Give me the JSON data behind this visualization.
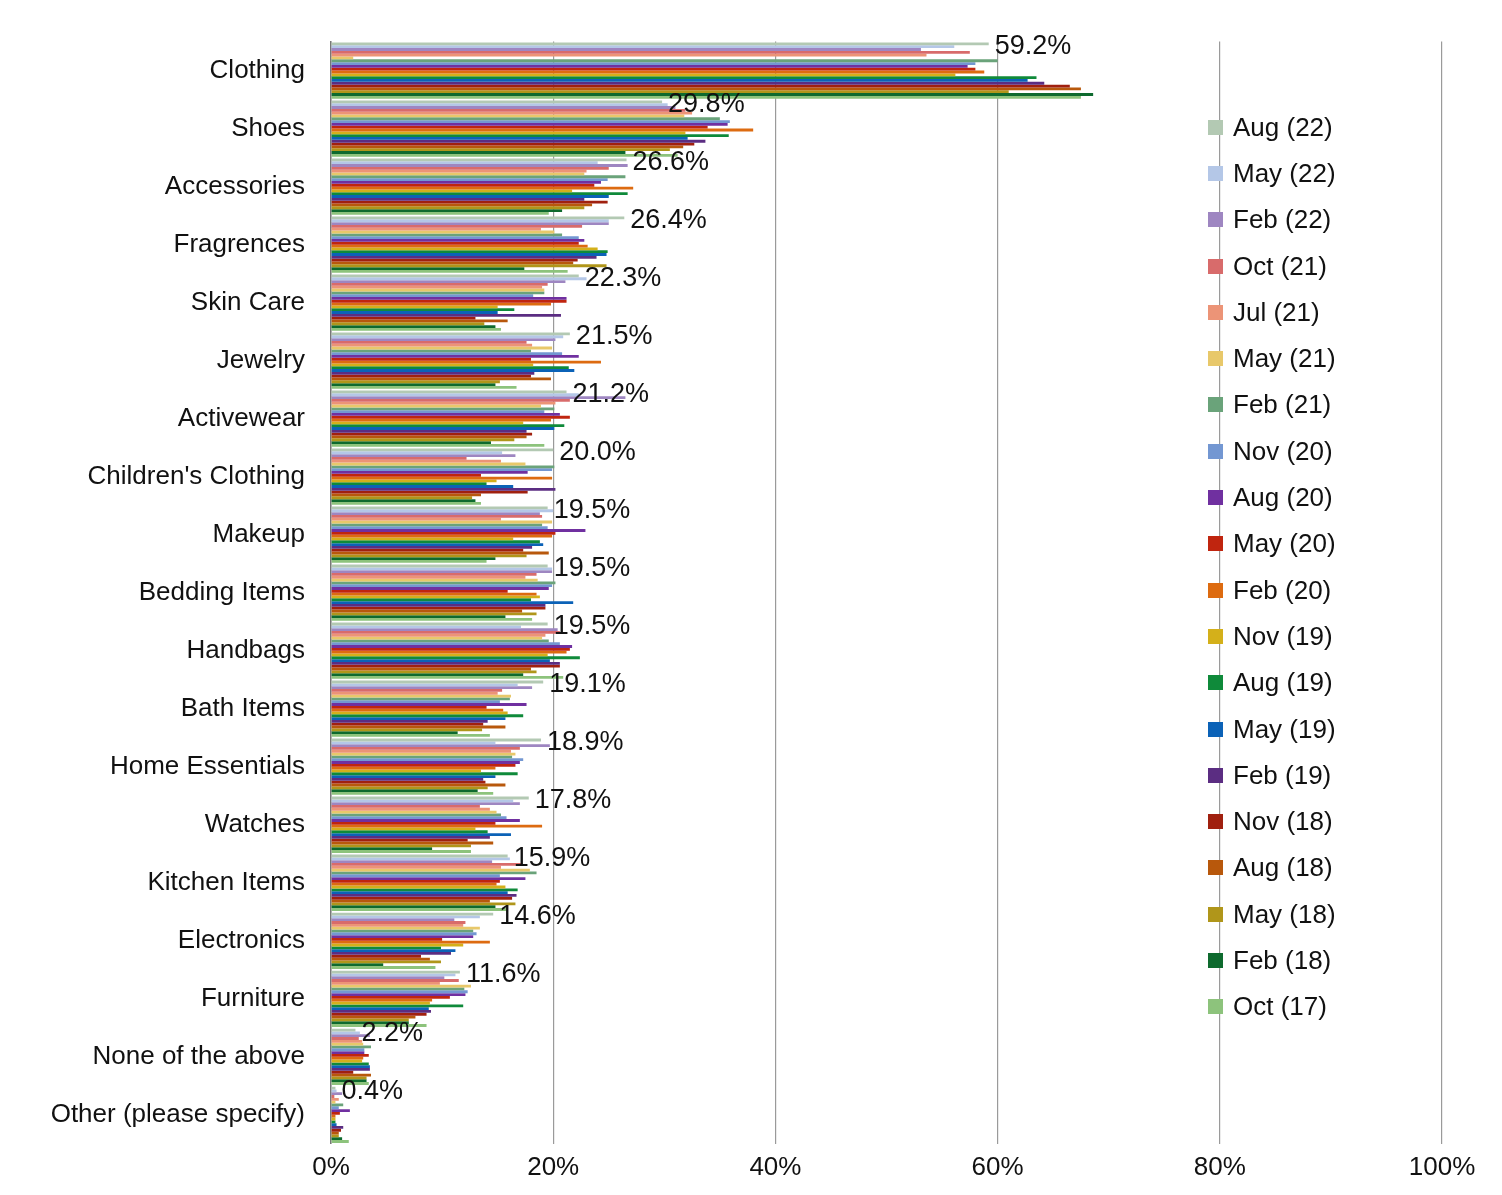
{
  "chart_data": {
    "type": "bar",
    "orientation": "horizontal",
    "categories": [
      "Clothing",
      "Shoes",
      "Accessories",
      "Fragrences",
      "Skin Care",
      "Jewelry",
      "Activewear",
      "Children's Clothing",
      "Makeup",
      "Bedding Items",
      "Handbags",
      "Bath Items",
      "Home Essentials",
      "Watches",
      "Kitchen Items",
      "Electronics",
      "Furniture",
      "None of the above",
      "Other (please specify)"
    ],
    "series": [
      {
        "name": "Aug (22)",
        "color": "#b3c9b3",
        "values": [
          59.2,
          29.8,
          26.6,
          26.4,
          22.3,
          21.5,
          21.2,
          20.0,
          19.5,
          19.5,
          19.5,
          19.1,
          18.9,
          17.8,
          15.9,
          14.6,
          11.6,
          2.2,
          0.4
        ],
        "value_labels": [
          "59.2%",
          "29.8%",
          "26.6%",
          "26.4%",
          "22.3%",
          "21.5%",
          "21.2%",
          "20.0%",
          "19.5%",
          "19.5%",
          "19.5%",
          "19.1%",
          "18.9%",
          "17.8%",
          "15.9%",
          "14.6%",
          "11.6%",
          "2.2%",
          "0.4%"
        ]
      },
      {
        "name": "May (22)",
        "color": "#b4c7e7",
        "values": [
          56.1,
          30.3,
          24.0,
          25.0,
          23.0,
          20.9,
          22.3,
          15.4,
          20.0,
          19.9,
          17.1,
          16.8,
          14.8,
          16.4,
          16.1,
          13.4,
          11.2,
          2.6,
          0.5
        ]
      },
      {
        "name": "Feb (22)",
        "color": "#9e86c1",
        "values": [
          53.1,
          31.0,
          26.7,
          25.0,
          21.1,
          20.2,
          26.5,
          16.6,
          18.8,
          19.9,
          20.4,
          18.1,
          19.7,
          17.0,
          14.5,
          11.1,
          10.2,
          3.5,
          1.0
        ]
      },
      {
        "name": "Oct (21)",
        "color": "#d86b6b",
        "values": [
          57.5,
          31.9,
          25.0,
          22.6,
          19.5,
          17.6,
          21.5,
          12.2,
          19.0,
          18.5,
          20.6,
          15.4,
          17.0,
          13.4,
          17.1,
          12.1,
          11.5,
          2.5,
          0.3
        ]
      },
      {
        "name": "Jul (21)",
        "color": "#ec9477",
        "values": [
          53.6,
          32.5,
          23.0,
          18.9,
          19.0,
          18.1,
          20.2,
          15.3,
          15.3,
          17.5,
          19.3,
          15.0,
          16.2,
          14.3,
          15.3,
          11.9,
          9.8,
          2.8,
          0.7
        ]
      },
      {
        "name": "May (21)",
        "color": "#e8c86a",
        "values": [
          2.0,
          31.8,
          22.8,
          20.1,
          19.2,
          19.9,
          18.9,
          17.5,
          19.9,
          18.6,
          19.0,
          16.2,
          16.6,
          14.9,
          17.9,
          13.4,
          12.6,
          2.9,
          0.4
        ]
      },
      {
        "name": "Feb (21)",
        "color": "#6aa37a",
        "values": [
          60.0,
          35.0,
          26.5,
          20.8,
          19.2,
          18.0,
          20.1,
          20.1,
          19.0,
          20.2,
          19.6,
          16.1,
          16.3,
          15.3,
          18.5,
          12.8,
          12.0,
          3.6,
          1.1
        ]
      },
      {
        "name": "Nov (20)",
        "color": "#7397d2",
        "values": [
          58.0,
          35.9,
          24.9,
          22.3,
          18.2,
          20.8,
          19.2,
          19.9,
          19.5,
          19.9,
          20.6,
          15.2,
          17.3,
          15.8,
          15.2,
          13.1,
          12.3,
          3.0,
          0.7
        ]
      },
      {
        "name": "Aug (20)",
        "color": "#7030a0",
        "values": [
          57.3,
          35.7,
          24.3,
          22.8,
          21.2,
          22.3,
          20.6,
          17.7,
          22.9,
          19.6,
          21.7,
          17.6,
          17.0,
          17.0,
          17.5,
          12.8,
          12.1,
          3.0,
          1.7
        ]
      },
      {
        "name": "May (20)",
        "color": "#c0250f",
        "values": [
          58.0,
          33.9,
          23.7,
          22.3,
          21.2,
          18.0,
          21.5,
          13.5,
          20.2,
          15.9,
          21.5,
          14.0,
          16.6,
          14.8,
          15.2,
          10.0,
          10.7,
          3.4,
          0.8
        ]
      },
      {
        "name": "Feb (20)",
        "color": "#dd6b10",
        "values": [
          58.8,
          38.0,
          27.2,
          23.1,
          19.8,
          24.3,
          19.8,
          19.9,
          19.9,
          18.5,
          21.2,
          15.5,
          14.8,
          19.0,
          14.9,
          14.3,
          9.1,
          2.9,
          0.4
        ]
      },
      {
        "name": "Nov (19)",
        "color": "#d4b01a",
        "values": [
          56.2,
          31.9,
          21.7,
          24.0,
          15.0,
          18.2,
          17.3,
          14.9,
          16.4,
          18.8,
          19.5,
          15.9,
          13.5,
          13.0,
          15.7,
          11.9,
          8.9,
          2.8,
          0.4
        ]
      },
      {
        "name": "Aug (19)",
        "color": "#0f8a3a",
        "values": [
          63.5,
          35.8,
          26.7,
          24.9,
          16.5,
          21.4,
          21.0,
          14.0,
          18.8,
          18.0,
          22.4,
          17.3,
          16.8,
          14.1,
          16.8,
          9.9,
          11.9,
          3.4,
          0.4
        ]
      },
      {
        "name": "May (19)",
        "color": "#0b62b7",
        "values": [
          62.7,
          32.1,
          25.0,
          24.8,
          15.0,
          21.9,
          20.1,
          16.4,
          19.1,
          21.8,
          19.7,
          15.7,
          14.8,
          16.2,
          15.9,
          11.2,
          8.8,
          3.5,
          0.5
        ]
      },
      {
        "name": "Feb (19)",
        "color": "#5b2d82",
        "values": [
          64.2,
          33.7,
          22.8,
          23.9,
          20.7,
          18.3,
          17.6,
          20.2,
          18.1,
          19.3,
          20.6,
          14.1,
          13.7,
          14.3,
          16.7,
          10.8,
          9.0,
          3.5,
          1.1
        ]
      },
      {
        "name": "Nov (18)",
        "color": "#a0200f",
        "values": [
          66.5,
          32.7,
          24.9,
          22.2,
          13.0,
          18.0,
          18.1,
          17.7,
          17.3,
          19.3,
          20.6,
          13.7,
          13.9,
          12.3,
          16.3,
          8.1,
          8.6,
          2.0,
          0.9
        ]
      },
      {
        "name": "Aug (18)",
        "color": "#b8580c",
        "values": [
          67.5,
          31.7,
          23.5,
          21.8,
          15.9,
          19.8,
          17.6,
          13.5,
          19.6,
          17.2,
          18.0,
          15.7,
          15.7,
          14.6,
          14.3,
          8.9,
          7.6,
          3.6,
          0.7
        ]
      },
      {
        "name": "May (18)",
        "color": "#b0961a",
        "values": [
          61.0,
          30.5,
          22.8,
          24.8,
          13.8,
          15.2,
          16.5,
          12.7,
          17.6,
          18.5,
          18.5,
          13.6,
          14.1,
          12.6,
          16.6,
          9.9,
          7.0,
          3.2,
          0.7
        ]
      },
      {
        "name": "Feb (18)",
        "color": "#0e6a2e",
        "values": [
          68.6,
          26.5,
          20.8,
          17.4,
          14.8,
          14.8,
          14.4,
          13.0,
          14.8,
          15.7,
          17.3,
          11.4,
          13.2,
          9.1,
          14.8,
          4.7,
          7.0,
          3.2,
          1.0
        ]
      },
      {
        "name": "Oct (17)",
        "color": "#8dc37c",
        "values": [
          67.5,
          31.2,
          19.6,
          21.3,
          15.3,
          16.7,
          19.2,
          13.5,
          14.0,
          18.1,
          20.9,
          14.3,
          14.6,
          12.6,
          15.8,
          9.4,
          8.6,
          3.4,
          1.6
        ]
      }
    ],
    "xlim": [
      0,
      100
    ],
    "xticks": [
      {
        "value": 0,
        "label": "0%"
      },
      {
        "value": 20,
        "label": "20%"
      },
      {
        "value": 40,
        "label": "40%"
      },
      {
        "value": 60,
        "label": "60%"
      },
      {
        "value": 80,
        "label": "80%"
      },
      {
        "value": 100,
        "label": "100%"
      }
    ],
    "grid": "x",
    "legend": "right"
  }
}
